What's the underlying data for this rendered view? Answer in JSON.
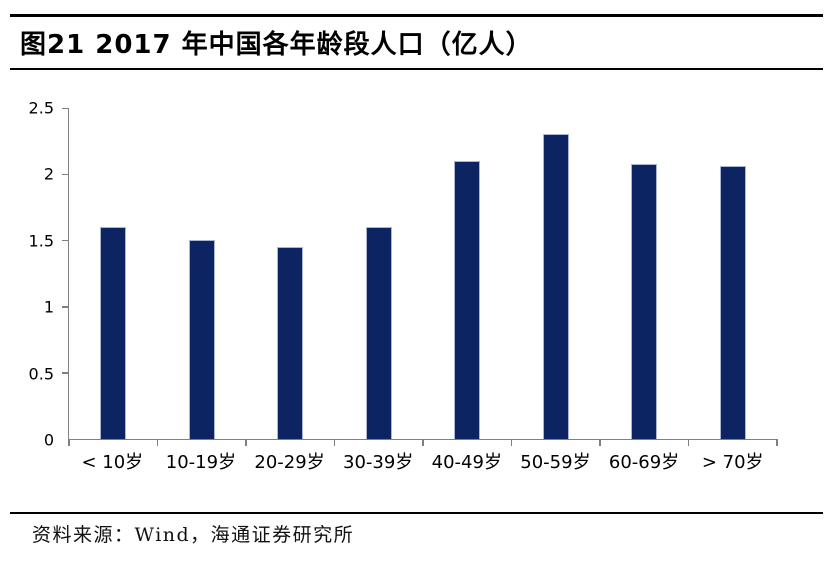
{
  "title": {
    "text": "图21 2017 年中国各年龄段人口（亿人）"
  },
  "source": {
    "text": "资料来源：Wind，海通证券研究所"
  },
  "colors": {
    "bar_fill": "#0d2463",
    "bar_border": "#aab6d2",
    "axis": "#808080",
    "rule": "#000000",
    "background": "#ffffff"
  },
  "chart_data": {
    "type": "bar",
    "title": "图21 2017 年中国各年龄段人口（亿人）",
    "categories": [
      "< 10岁",
      "10-19岁",
      "20-29岁",
      "30-39岁",
      "40-49岁",
      "50-59岁",
      "60-69岁",
      "> 70岁"
    ],
    "values": [
      1.6,
      1.5,
      1.45,
      1.6,
      2.1,
      2.3,
      2.08,
      2.06
    ],
    "xlabel": "",
    "ylabel": "",
    "ylim": [
      0,
      2.5
    ],
    "yticks": [
      0,
      0.5,
      1,
      1.5,
      2,
      2.5
    ],
    "ytick_labels": [
      "0",
      "0.5",
      "1",
      "1.5",
      "2",
      "2.5"
    ],
    "grid": false,
    "legend": "none",
    "bar_color": "#0d2463"
  }
}
